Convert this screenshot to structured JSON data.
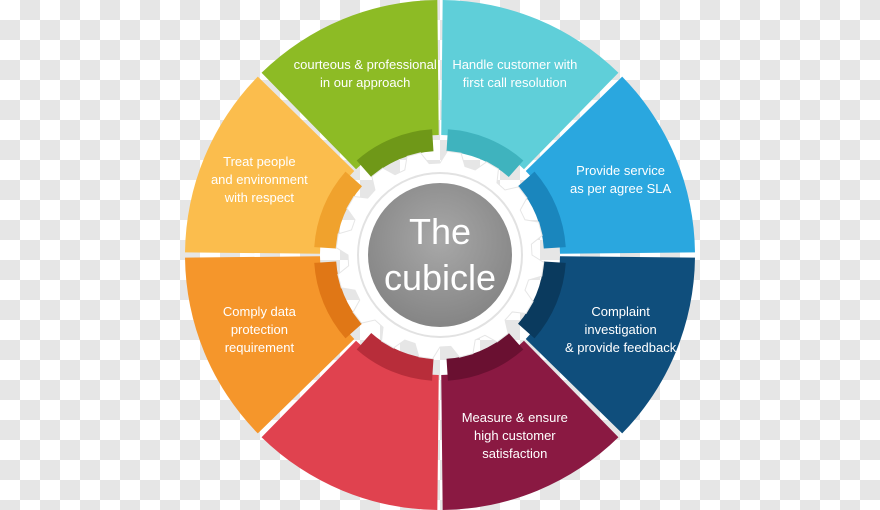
{
  "center": {
    "line1": "The",
    "line2": "cubicle"
  },
  "segments": [
    {
      "id": "handle-customer",
      "label_lines": [
        "Handle customer with",
        "first call resolution"
      ],
      "color": "#5fcfd9",
      "dark": "#3fb3be"
    },
    {
      "id": "provide-service",
      "label_lines": [
        "Provide service",
        "as per agree SLA"
      ],
      "color": "#2aa7df",
      "dark": "#1a86bd"
    },
    {
      "id": "complaint",
      "label_lines": [
        "Complaint",
        "investigation",
        "& provide feedback"
      ],
      "color": "#0f4e7c",
      "dark": "#0a3a5e"
    },
    {
      "id": "measure",
      "label_lines": [
        "Measure & ensure",
        "high customer",
        "satisfaction"
      ],
      "color": "#8a1942",
      "dark": "#6a1031"
    },
    {
      "id": "blank-red",
      "label_lines": [],
      "color": "#e0424f",
      "dark": "#b82d3a"
    },
    {
      "id": "comply",
      "label_lines": [
        "Comply data",
        "protection",
        "requirement"
      ],
      "color": "#f5962b",
      "dark": "#e07716"
    },
    {
      "id": "treat-people",
      "label_lines": [
        "Treat people",
        "and environment",
        "with respect"
      ],
      "color": "#fbbd4d",
      "dark": "#f0a22d"
    },
    {
      "id": "courteous",
      "label_lines": [
        "courteous & professional",
        "in our approach"
      ],
      "color": "#8dbb25",
      "dark": "#6f9818"
    }
  ]
}
